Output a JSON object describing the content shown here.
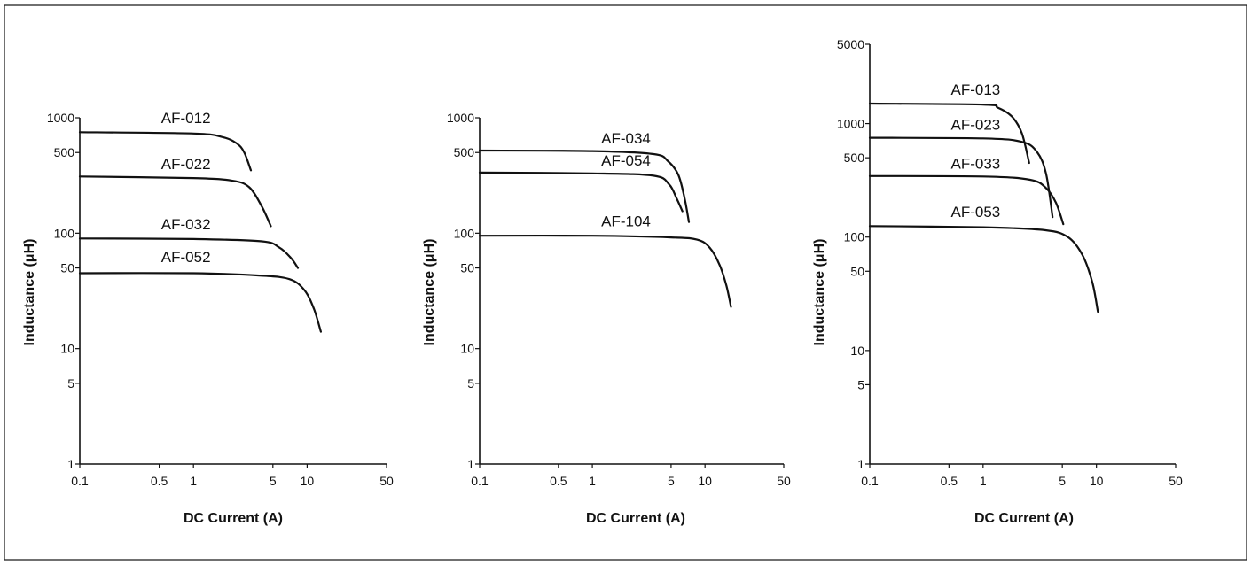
{
  "chart_data": [
    {
      "type": "line",
      "scale": {
        "x": "log",
        "y": "log"
      },
      "xlabel": "DC Current (A)",
      "ylabel": "Inductance (μH)",
      "xlim": [
        0.1,
        50
      ],
      "ylim": [
        1,
        1000
      ],
      "x_ticks": [
        "0.1",
        "0.5",
        "1",
        "5",
        "10",
        "50"
      ],
      "y_ticks": [
        "1",
        "5",
        "10",
        "50",
        "100",
        "500",
        "1000"
      ],
      "grid": false,
      "legend": "none",
      "series": [
        {
          "name": "AF-012",
          "x": [
            0.1,
            1,
            1.8,
            2.4,
            2.8,
            3.2
          ],
          "y": [
            750,
            730,
            680,
            600,
            500,
            350
          ]
        },
        {
          "name": "AF-022",
          "x": [
            0.1,
            1,
            2.2,
            3.1,
            4,
            4.8
          ],
          "y": [
            310,
            300,
            285,
            250,
            170,
            115
          ]
        },
        {
          "name": "AF-032",
          "x": [
            0.1,
            1,
            4,
            5.7,
            7.2,
            8.3
          ],
          "y": [
            90,
            89,
            85,
            75,
            61,
            50
          ]
        },
        {
          "name": "AF-052",
          "x": [
            0.1,
            1,
            3.8,
            7,
            9.5,
            11.5,
            13.2
          ],
          "y": [
            45,
            45,
            43,
            40,
            32,
            22,
            14
          ]
        }
      ]
    },
    {
      "type": "line",
      "scale": {
        "x": "log",
        "y": "log"
      },
      "xlabel": "DC Current (A)",
      "ylabel": "Inductance (μH)",
      "xlim": [
        0.1,
        50
      ],
      "ylim": [
        1,
        1000
      ],
      "x_ticks": [
        "0.1",
        "0.5",
        "1",
        "5",
        "10",
        "50"
      ],
      "y_ticks": [
        "1",
        "5",
        "10",
        "50",
        "100",
        "500",
        "1000"
      ],
      "grid": false,
      "legend": "none",
      "series": [
        {
          "name": "AF-034",
          "x": [
            0.1,
            1,
            3.5,
            4.7,
            5.8,
            6.6,
            7.2
          ],
          "y": [
            520,
            515,
            485,
            420,
            320,
            200,
            125
          ]
        },
        {
          "name": "AF-054",
          "x": [
            0.1,
            1,
            3.5,
            4.8,
            5.6,
            6.3
          ],
          "y": [
            335,
            330,
            315,
            265,
            200,
            155
          ]
        },
        {
          "name": "AF-104",
          "x": [
            0.1,
            1,
            5,
            8.5,
            11,
            13.5,
            15.5,
            17
          ],
          "y": [
            95,
            95,
            92,
            88,
            75,
            53,
            35,
            23
          ]
        }
      ]
    },
    {
      "type": "line",
      "scale": {
        "x": "log",
        "y": "log"
      },
      "xlabel": "DC Current (A)",
      "ylabel": "Inductance (μH)",
      "xlim": [
        0.1,
        50
      ],
      "ylim": [
        1,
        5000
      ],
      "x_ticks": [
        "0.1",
        "0.5",
        "1",
        "5",
        "10",
        "50"
      ],
      "y_ticks": [
        "1",
        "5",
        "10",
        "50",
        "100",
        "500",
        "1000",
        "5000"
      ],
      "grid": false,
      "legend": "none",
      "series": [
        {
          "name": "AF-013",
          "x": [
            0.1,
            1,
            1.35,
            1.8,
            2.2,
            2.55
          ],
          "y": [
            1500,
            1470,
            1380,
            1150,
            820,
            450
          ]
        },
        {
          "name": "AF-023",
          "x": [
            0.1,
            1,
            2.2,
            3,
            3.6,
            4.1
          ],
          "y": [
            750,
            740,
            690,
            560,
            360,
            150
          ]
        },
        {
          "name": "AF-033",
          "x": [
            0.1,
            1,
            2.6,
            3.6,
            4.4,
            5.1
          ],
          "y": [
            345,
            342,
            320,
            270,
            200,
            130
          ]
        },
        {
          "name": "AF-053",
          "x": [
            0.1,
            1,
            3.5,
            5.6,
            7.5,
            9.2,
            10.3
          ],
          "y": [
            125,
            122,
            115,
            100,
            70,
            40,
            22
          ]
        }
      ]
    }
  ]
}
